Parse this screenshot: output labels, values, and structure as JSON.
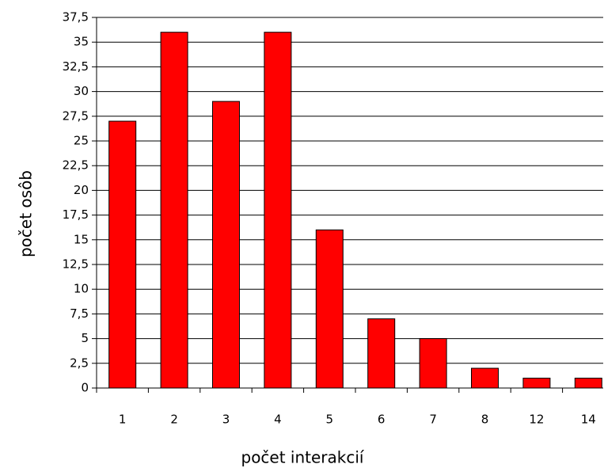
{
  "chart_data": {
    "type": "bar",
    "x_label": "počet interakcií",
    "y_label": "počet osôb",
    "categories": [
      "1",
      "2",
      "3",
      "4",
      "5",
      "6",
      "7",
      "8",
      "12",
      "14"
    ],
    "values": [
      27,
      36,
      29,
      36,
      16,
      7,
      5,
      2,
      1,
      1
    ],
    "color": "#ff0000",
    "ylim": [
      0,
      37.5
    ],
    "yticks": [
      0,
      {
        "value": 2.5,
        "label": "2,5"
      },
      5,
      {
        "value": 7.5,
        "label": "7,5"
      },
      10,
      {
        "value": 12.5,
        "label": "12,5"
      },
      15,
      {
        "value": 17.5,
        "label": "17,5"
      },
      20,
      {
        "value": 22.5,
        "label": "22,5"
      },
      25,
      {
        "value": 27.5,
        "label": "27,5"
      },
      30,
      {
        "value": 32.5,
        "label": "32,5"
      },
      35,
      {
        "value": 37.5,
        "label": "37,5"
      }
    ],
    "grid": true
  }
}
